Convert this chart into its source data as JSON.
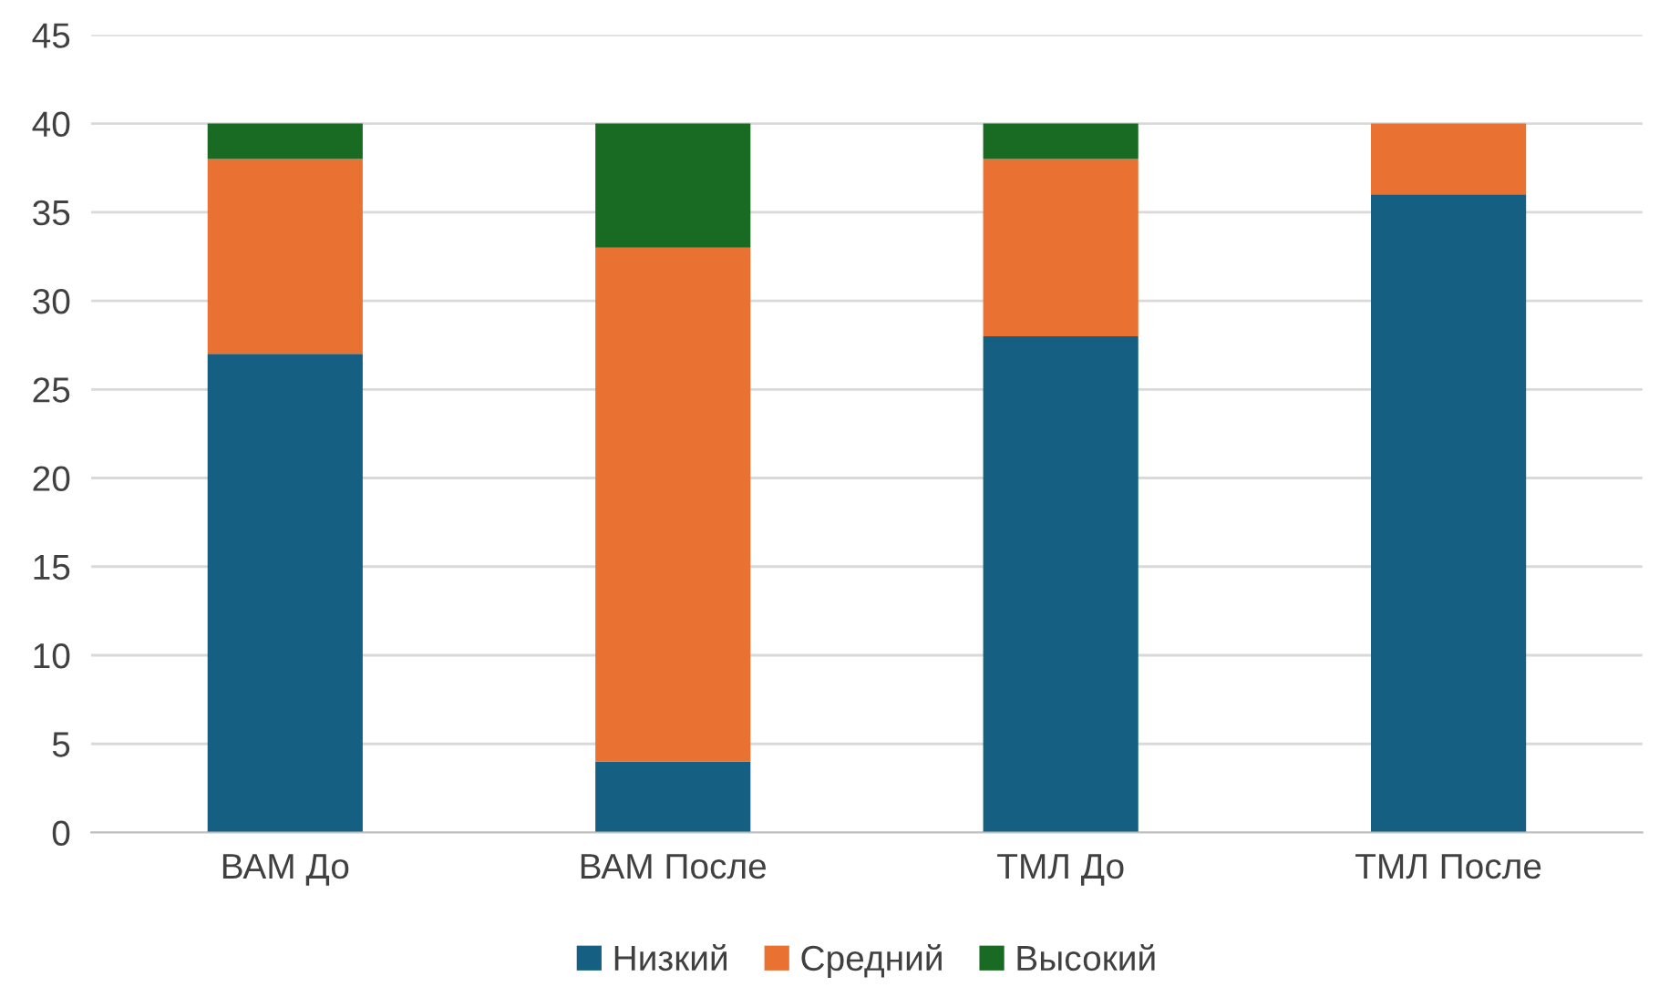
{
  "chart_data": {
    "type": "bar",
    "stacked": true,
    "categories": [
      "ВАМ До",
      "ВАМ После",
      "ТМЛ До",
      "ТМЛ После"
    ],
    "series": [
      {
        "name": "Низкий",
        "color": "#156082",
        "values": [
          27,
          4,
          28,
          36
        ]
      },
      {
        "name": "Средний",
        "color": "#e97132",
        "values": [
          11,
          29,
          10,
          4
        ]
      },
      {
        "name": "Высокий",
        "color": "#196b24",
        "values": [
          2,
          7,
          2,
          0
        ]
      }
    ],
    "ylim": [
      0,
      45
    ],
    "yticks": [
      0,
      5,
      10,
      15,
      20,
      25,
      30,
      35,
      40,
      45
    ],
    "grid": "y",
    "legend": "bottom"
  }
}
